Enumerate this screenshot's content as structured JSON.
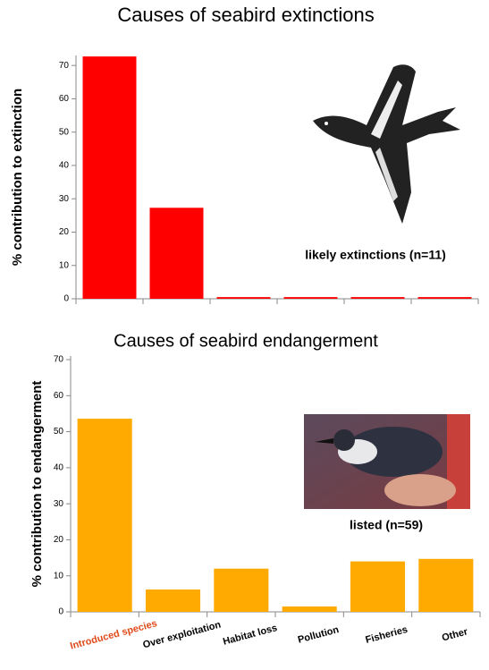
{
  "chart_data": [
    {
      "type": "bar",
      "title": "Causes of seabird extinctions",
      "y_label": "% contribution to extinction",
      "categories": [
        null,
        null,
        null,
        null,
        null,
        null
      ],
      "values": [
        72.7,
        27.3,
        0.5,
        0.5,
        0.5,
        0.5
      ],
      "color": "#ff0000",
      "ylim": [
        0,
        73
      ],
      "yticks": [
        0,
        10,
        20,
        30,
        40,
        50,
        60,
        70
      ],
      "annotation": "likely extinctions (n=11)"
    },
    {
      "type": "bar",
      "title": "Causes of seabird endangerment",
      "y_label": "% contribution to endangerment",
      "categories": [
        "Introduced species",
        "Over exploitation",
        "Habitat loss",
        "Pollution",
        "Fisheries",
        "Other"
      ],
      "values": [
        53.6,
        6.2,
        12.0,
        1.5,
        14.0,
        14.7
      ],
      "color": "#ffaa00",
      "ylim": [
        0,
        71
      ],
      "yticks": [
        0,
        10,
        20,
        30,
        40,
        50,
        60,
        70
      ],
      "highlight_category": 0,
      "highlight_color": "#e04a1a",
      "annotation": "listed (n=59)"
    }
  ]
}
